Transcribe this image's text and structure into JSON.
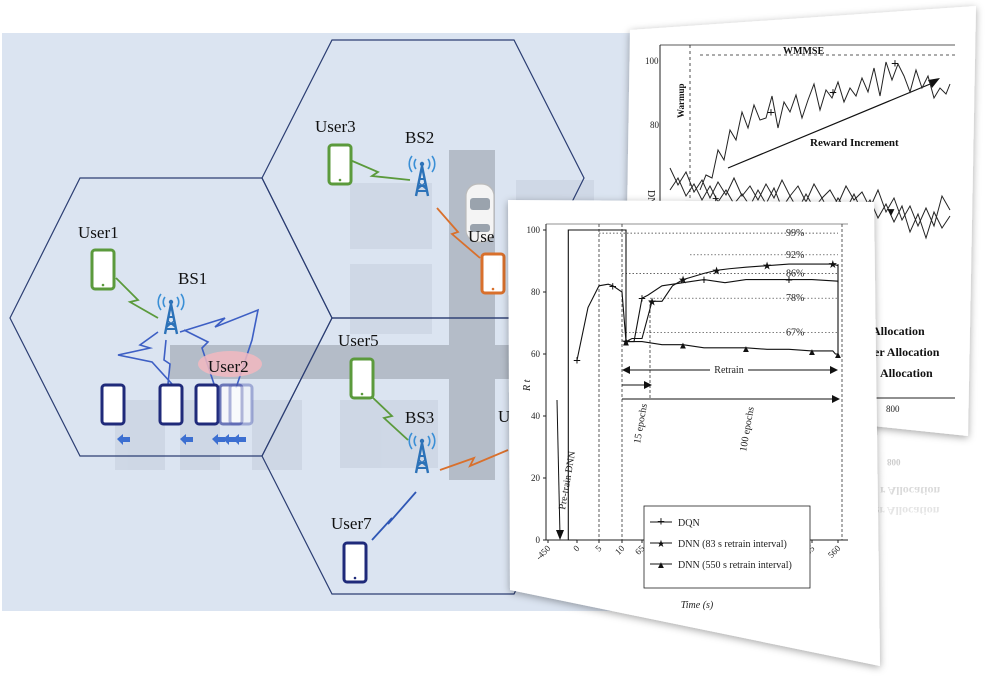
{
  "network": {
    "users": [
      {
        "id": "user1",
        "label": "User1"
      },
      {
        "id": "user2",
        "label": "User2"
      },
      {
        "id": "user3",
        "label": "User3"
      },
      {
        "id": "user4",
        "label": "Use"
      },
      {
        "id": "user5",
        "label": "User5"
      },
      {
        "id": "user6",
        "label": "U"
      },
      {
        "id": "user7",
        "label": "User7"
      }
    ],
    "base_stations": [
      {
        "id": "bs1",
        "label": "BS1"
      },
      {
        "id": "bs2",
        "label": "BS2"
      },
      {
        "id": "bs3",
        "label": "BS3"
      }
    ],
    "colors": {
      "background": "#dbe4f1",
      "hex_stroke": "#2c3e73",
      "green_phone": "#5b9a3c",
      "orange_phone": "#d9702c",
      "navy_phone": "#1f2a7a",
      "tower": "#2c72b8",
      "road": "#b4bcc8"
    }
  },
  "back_chart": {
    "annotations": {
      "wmmse": "WMMSE",
      "warmup": "Warmup",
      "reward": "Reward Increment",
      "ylab_partial": "DNN Rt"
    },
    "y_ticks": [
      "100",
      "80"
    ],
    "x_ticks": [
      "800"
    ],
    "legend_partial": [
      "Allocation",
      "er Allocation",
      "Allocation"
    ]
  },
  "reflection": {
    "lines": [
      "800",
      "r Allocation",
      "er Allocation"
    ]
  },
  "chart_data": {
    "type": "line",
    "xlabel": "Time (s)",
    "ylabel": "R t",
    "x_tick_labels": [
      "-450",
      "0",
      "5",
      "10",
      "65",
      "120",
      "175",
      "230",
      "285",
      "340",
      "395",
      "450",
      "505",
      "560"
    ],
    "y_ticks": [
      0,
      20,
      40,
      60,
      80,
      100
    ],
    "ylim": [
      0,
      100
    ],
    "series": [
      {
        "name": "DQN",
        "marker": "plus",
        "points": [
          [
            0,
            58
          ],
          [
            0.5,
            75
          ],
          [
            1,
            82
          ],
          [
            1.4,
            82.5
          ],
          [
            1.6,
            82
          ],
          [
            2,
            80
          ],
          [
            2.2,
            64
          ],
          [
            2.6,
            64
          ],
          [
            3,
            78
          ],
          [
            3.3,
            79
          ],
          [
            4,
            82
          ],
          [
            5,
            83
          ],
          [
            6,
            84
          ],
          [
            7,
            83
          ],
          [
            8,
            84
          ],
          [
            9,
            84
          ],
          [
            10,
            84
          ],
          [
            11,
            84
          ],
          [
            12,
            83.5
          ],
          [
            12.1,
            83
          ]
        ]
      },
      {
        "name": "DNN (83 s retrain interval)",
        "marker": "star",
        "points": [
          [
            2.2,
            64
          ],
          [
            2.5,
            65
          ],
          [
            3,
            65
          ],
          [
            3.5,
            77
          ],
          [
            4,
            77
          ],
          [
            4.5,
            82
          ],
          [
            5,
            84
          ],
          [
            5.5,
            85
          ],
          [
            6,
            86
          ],
          [
            6.6,
            87
          ],
          [
            7.2,
            87.5
          ],
          [
            8,
            88
          ],
          [
            9,
            88.5
          ],
          [
            10,
            89
          ],
          [
            11,
            89
          ],
          [
            11.8,
            89
          ],
          [
            12.1,
            88.5
          ]
        ]
      },
      {
        "name": "DNN (550 s retrain interval)",
        "marker": "triangle",
        "points": [
          [
            2.2,
            64
          ],
          [
            3,
            64
          ],
          [
            4,
            63
          ],
          [
            5,
            63
          ],
          [
            6,
            62
          ],
          [
            7,
            62
          ],
          [
            8,
            62
          ],
          [
            9,
            61.5
          ],
          [
            10,
            61.5
          ],
          [
            11,
            61
          ],
          [
            11.8,
            61
          ],
          [
            11.9,
            60
          ],
          [
            12,
            60
          ],
          [
            12.1,
            89
          ],
          [
            12.3,
            89
          ]
        ]
      },
      {
        "name": "Pre-train DNN",
        "marker": "none",
        "points": [
          [
            0,
            0
          ],
          [
            -0.3,
            0
          ],
          [
            -0.3,
            100
          ],
          [
            2.2,
            100
          ],
          [
            2.2,
            65
          ]
        ]
      }
    ],
    "ref_lines": [
      {
        "label": "99%",
        "value": 99
      },
      {
        "label": "92%",
        "value": 92
      },
      {
        "label": "86%",
        "value": 86
      },
      {
        "label": "78%",
        "value": 78
      },
      {
        "label": "67%",
        "value": 67
      }
    ],
    "annotations": [
      "Pre-train DNN",
      "15 epochs",
      "100 epochs",
      "Retrain"
    ]
  }
}
